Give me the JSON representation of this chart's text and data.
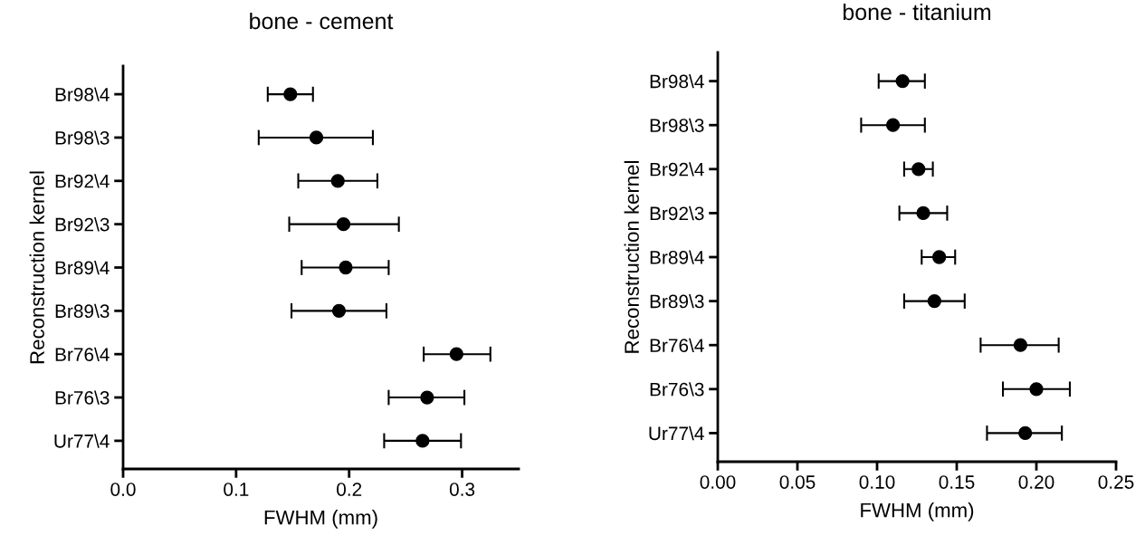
{
  "chart_data": [
    {
      "type": "scatter",
      "orientation": "horizontal",
      "title": "bone - cement",
      "xlabel": "FWHM (mm)",
      "ylabel": "Reconstruction kernel",
      "categories": [
        "Br98\\4",
        "Br98\\3",
        "Br92\\4",
        "Br92\\3",
        "Br89\\4",
        "Br89\\3",
        "Br76\\4",
        "Br76\\3",
        "Ur77\\4"
      ],
      "series": [
        {
          "color": "#000000",
          "values": [
            0.148,
            0.171,
            0.19,
            0.195,
            0.197,
            0.191,
            0.295,
            0.269,
            0.265
          ],
          "errors": [
            [
              0.128,
              0.168
            ],
            [
              0.12,
              0.221
            ],
            [
              0.155,
              0.225
            ],
            [
              0.147,
              0.244
            ],
            [
              0.158,
              0.235
            ],
            [
              0.149,
              0.233
            ],
            [
              0.266,
              0.325
            ],
            [
              0.235,
              0.302
            ],
            [
              0.231,
              0.299
            ]
          ]
        }
      ],
      "xlim": [
        0,
        0.35
      ],
      "xticks": [
        {
          "value": 0,
          "label": "0.0"
        },
        {
          "value": 0.1,
          "label": "0.1"
        },
        {
          "value": 0.2,
          "label": "0.2"
        },
        {
          "value": 0.3,
          "label": "0.3"
        }
      ],
      "marker": "circle",
      "grid": false,
      "legend": false
    },
    {
      "type": "scatter",
      "orientation": "horizontal",
      "title": "bone - titanium",
      "xlabel": "FWHM (mm)",
      "ylabel": "Reconstruction kernel",
      "categories": [
        "Br98\\4",
        "Br98\\3",
        "Br92\\4",
        "Br92\\3",
        "Br89\\4",
        "Br89\\3",
        "Br76\\4",
        "Br76\\3",
        "Ur77\\4"
      ],
      "series": [
        {
          "color": "#000000",
          "values": [
            0.116,
            0.11,
            0.126,
            0.129,
            0.139,
            0.136,
            0.19,
            0.2,
            0.193
          ],
          "errors": [
            [
              0.101,
              0.13
            ],
            [
              0.09,
              0.13
            ],
            [
              0.117,
              0.135
            ],
            [
              0.114,
              0.144
            ],
            [
              0.128,
              0.149
            ],
            [
              0.117,
              0.155
            ],
            [
              0.165,
              0.214
            ],
            [
              0.179,
              0.221
            ],
            [
              0.169,
              0.216
            ]
          ]
        }
      ],
      "xlim": [
        0,
        0.25
      ],
      "xticks": [
        {
          "value": 0,
          "label": "0.00"
        },
        {
          "value": 0.05,
          "label": "0.05"
        },
        {
          "value": 0.1,
          "label": "0.10"
        },
        {
          "value": 0.15,
          "label": "0.15"
        },
        {
          "value": 0.2,
          "label": "0.20"
        },
        {
          "value": 0.25,
          "label": "0.25"
        }
      ],
      "marker": "circle",
      "grid": false,
      "legend": false
    }
  ]
}
